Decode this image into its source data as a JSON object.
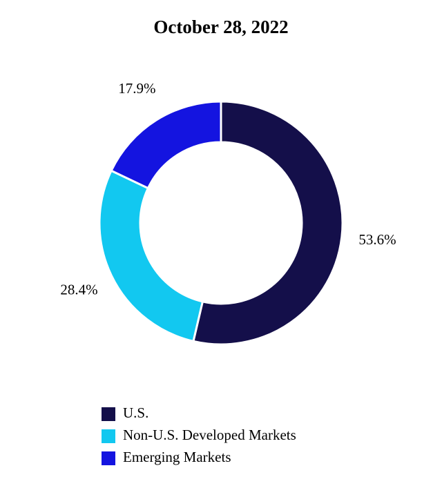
{
  "chart_data": {
    "type": "donut",
    "title": "October 28, 2022",
    "categories": [
      "U.S.",
      "Non-U.S. Developed Markets",
      "Emerging Markets"
    ],
    "values": [
      53.6,
      28.4,
      17.9
    ],
    "value_labels": [
      "53.6%",
      "28.4%",
      "17.9%"
    ],
    "colors": [
      "#140f4a",
      "#12c8f0",
      "#1414e0"
    ],
    "legend": "bottom"
  }
}
